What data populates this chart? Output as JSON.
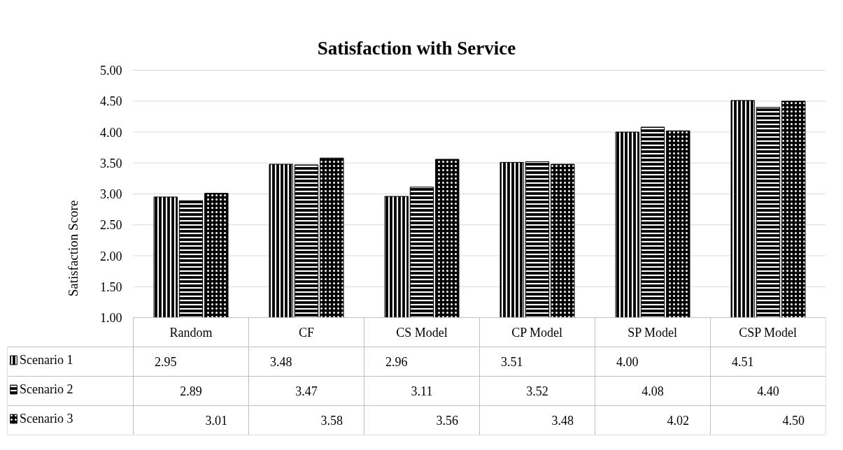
{
  "chart_data": {
    "type": "bar",
    "title": "Satisfaction with Service",
    "ylabel": "Satisfaction Score",
    "categories": [
      "Random",
      "CF",
      "CS Model",
      "CP Model",
      "SP Model",
      "CSP Model"
    ],
    "series": [
      {
        "name": "Scenario 1",
        "color": "#000000",
        "values": [
          2.95,
          3.48,
          2.96,
          3.51,
          4.0,
          4.51
        ],
        "value_labels": [
          "2.95",
          "3.48",
          "2.96",
          "3.51",
          "4.00",
          "4.51"
        ]
      },
      {
        "name": "Scenario 2",
        "color": "#000000",
        "values": [
          2.89,
          3.47,
          3.11,
          3.52,
          4.08,
          4.4
        ],
        "value_labels": [
          "2.89",
          "3.47",
          "3.11",
          "3.52",
          "4.08",
          "4.40"
        ]
      },
      {
        "name": "Scenario 3",
        "color": "#000000",
        "values": [
          3.01,
          3.58,
          3.56,
          3.48,
          4.02,
          4.5
        ],
        "value_labels": [
          "3.01",
          "3.58",
          "3.56",
          "3.48",
          "4.02",
          "4.50"
        ]
      }
    ],
    "ylim": [
      1,
      5
    ],
    "yticks": [
      {
        "value": 1,
        "label": "1.00"
      },
      {
        "value": 1.5,
        "label": "1.50"
      },
      {
        "value": 2,
        "label": "2.00"
      },
      {
        "value": 2.5,
        "label": "2.50"
      },
      {
        "value": 3,
        "label": "3.00"
      },
      {
        "value": 3.5,
        "label": "3.50"
      },
      {
        "value": 4,
        "label": "4.00"
      },
      {
        "value": 4.5,
        "label": "4.50"
      },
      {
        "value": 5,
        "label": "5.00"
      }
    ],
    "grid": "y",
    "legend": "bottom left"
  }
}
